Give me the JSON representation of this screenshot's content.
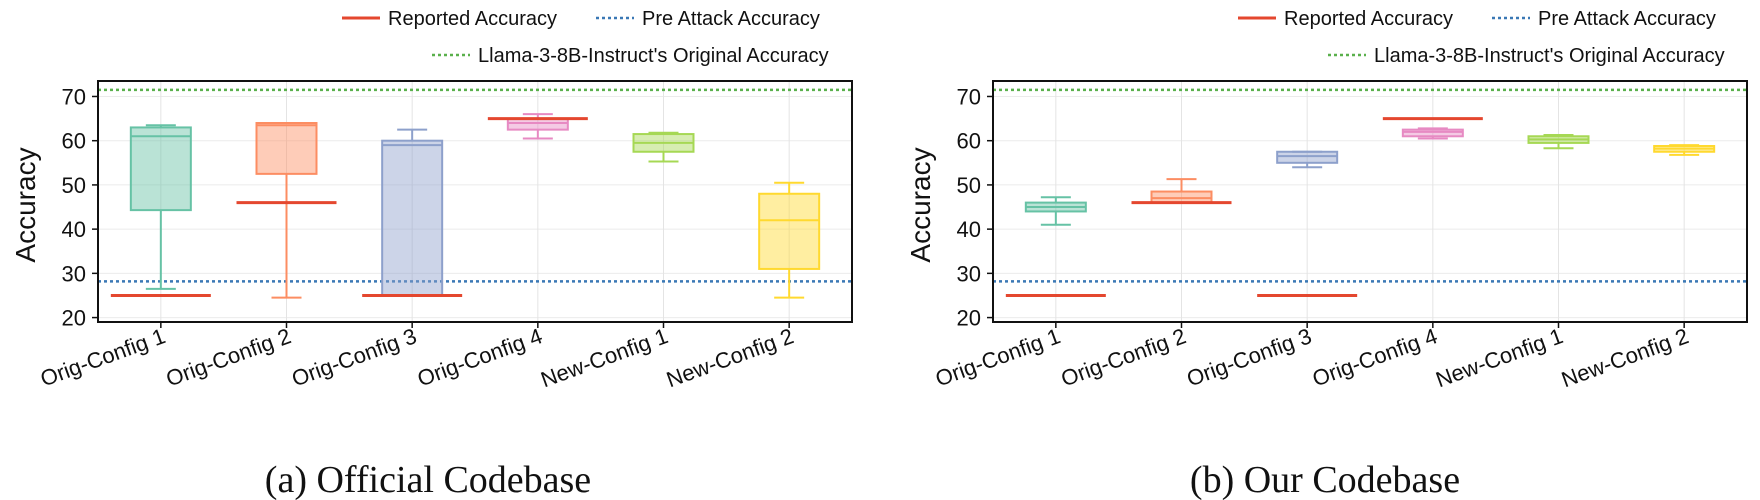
{
  "legend": {
    "reported": "Reported Accuracy",
    "pre_attack": "Pre Attack Accuracy",
    "original": "Llama-3-8B-Instruct's Original Accuracy"
  },
  "colors": {
    "reported": "#e4472f",
    "pre_attack": "#3a78b5",
    "original": "#5ab04c",
    "boxes": [
      "#66c2a5",
      "#fc8d62",
      "#8da0cb",
      "#e78ac3",
      "#a6d854",
      "#ffd92f"
    ]
  },
  "chart_data": [
    {
      "type": "box",
      "caption": "(a) Official Codebase",
      "ylabel": "Accuracy",
      "ylim": [
        19,
        73.5
      ],
      "yticks": [
        20,
        30,
        40,
        50,
        60,
        70
      ],
      "grid": true,
      "legend_position": "top-right, outside",
      "categories": [
        "Orig-Config 1",
        "Orig-Config 2",
        "Orig-Config 3",
        "Orig-Config 4",
        "New-Config 1",
        "New-Config 2"
      ],
      "boxes": [
        {
          "whisker_low": 26.5,
          "q1": 44.3,
          "median": 61.0,
          "q3": 63.0,
          "whisker_high": 63.5
        },
        {
          "whisker_low": 24.5,
          "q1": 52.5,
          "median": 63.5,
          "q3": 64.0,
          "whisker_high": 64.0
        },
        {
          "whisker_low": 25.0,
          "q1": 25.0,
          "median": 59.0,
          "q3": 60.0,
          "whisker_high": 62.5
        },
        {
          "whisker_low": 60.5,
          "q1": 62.5,
          "median": 64.0,
          "q3": 65.0,
          "whisker_high": 66.0
        },
        {
          "whisker_low": 55.3,
          "q1": 57.5,
          "median": 59.5,
          "q3": 61.5,
          "whisker_high": 61.8
        },
        {
          "whisker_low": 24.5,
          "q1": 31.0,
          "median": 42.0,
          "q3": 48.0,
          "whisker_high": 50.5
        }
      ],
      "reported_accuracy": [
        25.0,
        46.0,
        25.0,
        65.0,
        null,
        null
      ],
      "pre_attack_accuracy": 28.2,
      "original_accuracy": 71.5
    },
    {
      "type": "box",
      "caption": "(b) Our Codebase",
      "ylabel": "Accuracy",
      "ylim": [
        19,
        73.5
      ],
      "yticks": [
        20,
        30,
        40,
        50,
        60,
        70
      ],
      "grid": true,
      "legend_position": "top-right, outside",
      "categories": [
        "Orig-Config 1",
        "Orig-Config 2",
        "Orig-Config 3",
        "Orig-Config 4",
        "New-Config 1",
        "New-Config 2"
      ],
      "boxes": [
        {
          "whisker_low": 41.0,
          "q1": 44.0,
          "median": 45.0,
          "q3": 46.0,
          "whisker_high": 47.2
        },
        {
          "whisker_low": 46.0,
          "q1": 46.0,
          "median": 47.0,
          "q3": 48.5,
          "whisker_high": 51.3
        },
        {
          "whisker_low": 54.0,
          "q1": 55.0,
          "median": 56.5,
          "q3": 57.5,
          "whisker_high": 57.5
        },
        {
          "whisker_low": 60.5,
          "q1": 61.0,
          "median": 62.0,
          "q3": 62.5,
          "whisker_high": 62.8
        },
        {
          "whisker_low": 58.3,
          "q1": 59.5,
          "median": 60.3,
          "q3": 61.0,
          "whisker_high": 61.3
        },
        {
          "whisker_low": 56.8,
          "q1": 57.5,
          "median": 58.2,
          "q3": 58.8,
          "whisker_high": 59.0
        }
      ],
      "reported_accuracy": [
        25.0,
        46.0,
        25.0,
        65.0,
        null,
        null
      ],
      "pre_attack_accuracy": 28.2,
      "original_accuracy": 71.5
    }
  ]
}
